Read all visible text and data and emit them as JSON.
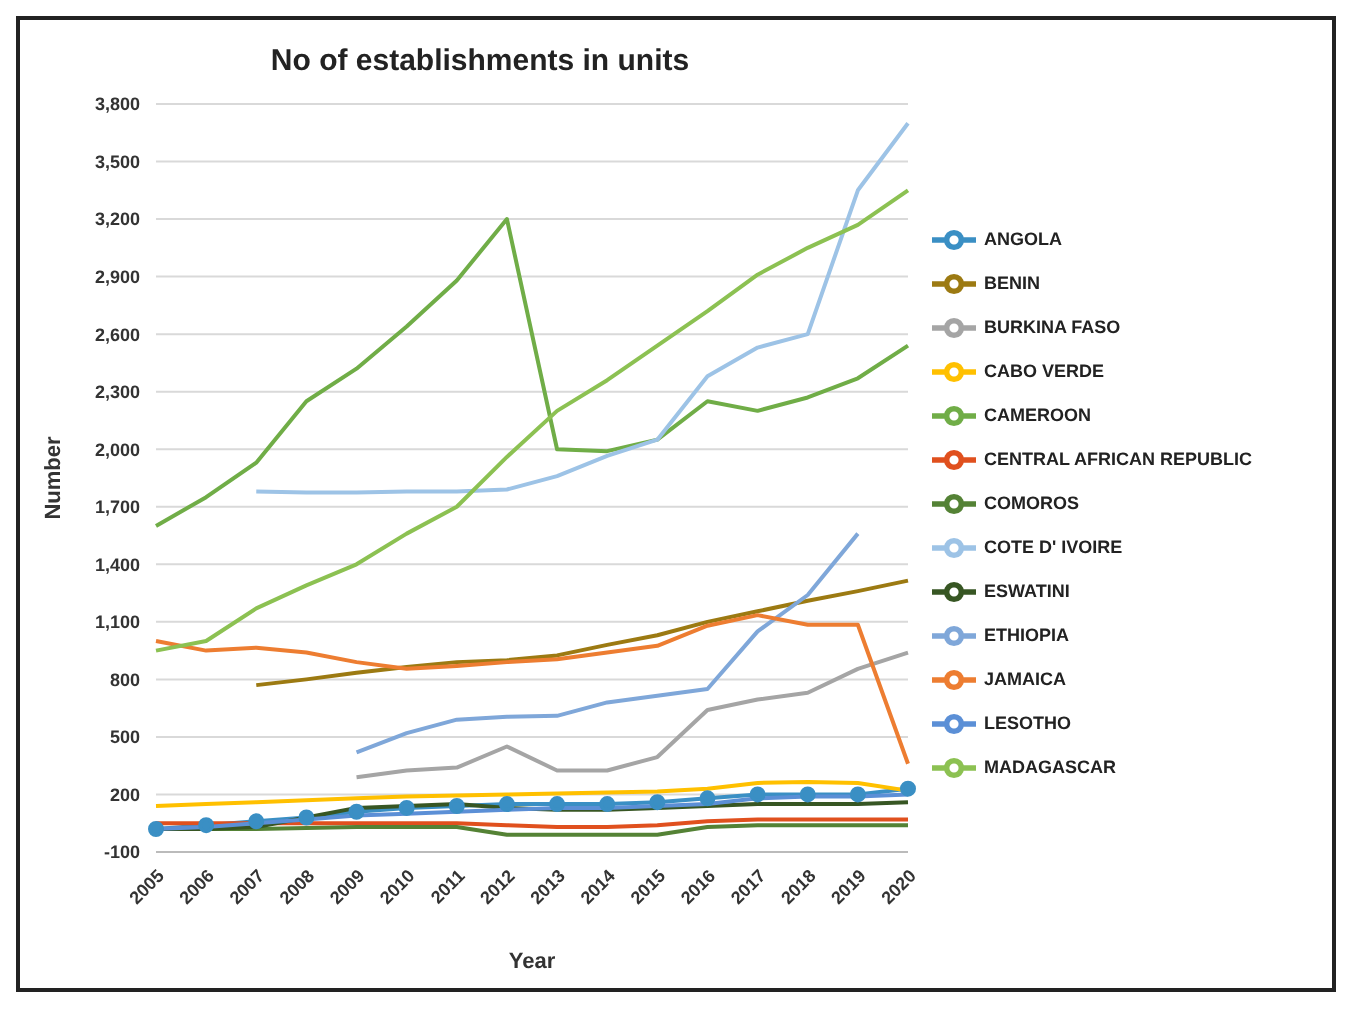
{
  "chart_data": {
    "type": "line",
    "title": "No of establishments in units",
    "xlabel": "Year",
    "ylabel": "Number",
    "categories": [
      "2005",
      "2006",
      "2007",
      "2008",
      "2009",
      "2010",
      "2011",
      "2012",
      "2013",
      "2014",
      "2015",
      "2016",
      "2017",
      "2018",
      "2019",
      "2020"
    ],
    "ylim": [
      -100,
      3800
    ],
    "yticks": [
      -100,
      200,
      500,
      800,
      {
        "value": 1100,
        "label": "1,100"
      },
      {
        "value": 1400,
        "label": "1,400"
      },
      {
        "value": 1700,
        "label": "1,700"
      },
      {
        "value": 2000,
        "label": "2,000"
      },
      {
        "value": 2300,
        "label": "2,300"
      },
      {
        "value": 2600,
        "label": "2,600"
      },
      {
        "value": 2900,
        "label": "2,900"
      },
      {
        "value": 3200,
        "label": "3,200"
      },
      {
        "value": 3500,
        "label": "3,500"
      },
      {
        "value": 3800,
        "label": "3,800"
      }
    ],
    "grid": "y",
    "legend": "right",
    "marker": "none",
    "line_style": "solid",
    "series": [
      {
        "name": "ANGOLA",
        "color": "#3a8fc4",
        "marker": "circle",
        "values": [
          20,
          40,
          60,
          80,
          110,
          130,
          140,
          150,
          150,
          150,
          160,
          180,
          200,
          200,
          200,
          230
        ]
      },
      {
        "name": "BENIN",
        "color": "#9c7a12",
        "values": [
          null,
          null,
          770,
          800,
          835,
          865,
          890,
          900,
          925,
          980,
          1030,
          1100,
          1155,
          1210,
          1260,
          1315
        ]
      },
      {
        "name": "BURKINA FASO",
        "color": "#a5a5a5",
        "values": [
          null,
          null,
          null,
          null,
          290,
          325,
          340,
          450,
          325,
          325,
          395,
          640,
          695,
          730,
          855,
          940
        ]
      },
      {
        "name": "CABO VERDE",
        "color": "#ffc000",
        "values": [
          140,
          150,
          160,
          170,
          180,
          190,
          195,
          200,
          205,
          210,
          215,
          230,
          260,
          265,
          260,
          220
        ]
      },
      {
        "name": "CAMEROON",
        "color": "#70ad47",
        "values": [
          1600,
          1750,
          1930,
          2250,
          2420,
          2640,
          2880,
          3200,
          2000,
          1990,
          2050,
          2250,
          2200,
          2270,
          2370,
          2540
        ]
      },
      {
        "name": "CENTRAL AFRICAN REPUBLIC",
        "color": "#e0501e",
        "values": [
          50,
          50,
          50,
          50,
          50,
          50,
          50,
          40,
          30,
          30,
          40,
          60,
          70,
          70,
          70,
          70
        ]
      },
      {
        "name": "COMOROS",
        "color": "#548235",
        "values": [
          20,
          20,
          20,
          25,
          30,
          30,
          30,
          -10,
          -10,
          -10,
          -10,
          30,
          40,
          40,
          40,
          40
        ]
      },
      {
        "name": "COTE D' IVOIRE",
        "color": "#9dc3e6",
        "values": [
          null,
          null,
          1780,
          1775,
          1775,
          1780,
          1780,
          1790,
          1860,
          1965,
          2050,
          2380,
          2530,
          2600,
          3350,
          3700
        ]
      },
      {
        "name": "ESWATINI",
        "color": "#375623",
        "values": [
          20,
          20,
          30,
          80,
          130,
          140,
          150,
          130,
          120,
          120,
          130,
          140,
          150,
          150,
          150,
          160
        ]
      },
      {
        "name": "ETHIOPIA",
        "color": "#7fa7d9",
        "values": [
          null,
          null,
          null,
          null,
          420,
          520,
          590,
          605,
          610,
          680,
          715,
          750,
          1050,
          1240,
          1560,
          null
        ]
      },
      {
        "name": "JAMAICA",
        "color": "#ed7d31",
        "values": [
          1000,
          950,
          965,
          940,
          890,
          855,
          870,
          890,
          905,
          940,
          975,
          1080,
          1135,
          1085,
          1085,
          360
        ]
      },
      {
        "name": "LESOTHO",
        "color": "#5b8fd6",
        "values": [
          20,
          30,
          50,
          70,
          90,
          100,
          110,
          120,
          130,
          130,
          140,
          150,
          180,
          190,
          190,
          200
        ]
      },
      {
        "name": "MADAGASCAR",
        "color": "#8cc152",
        "values": [
          950,
          1000,
          1170,
          1290,
          1400,
          1560,
          1700,
          1960,
          2200,
          2360,
          2540,
          2720,
          2910,
          3050,
          3170,
          3350
        ]
      }
    ]
  }
}
